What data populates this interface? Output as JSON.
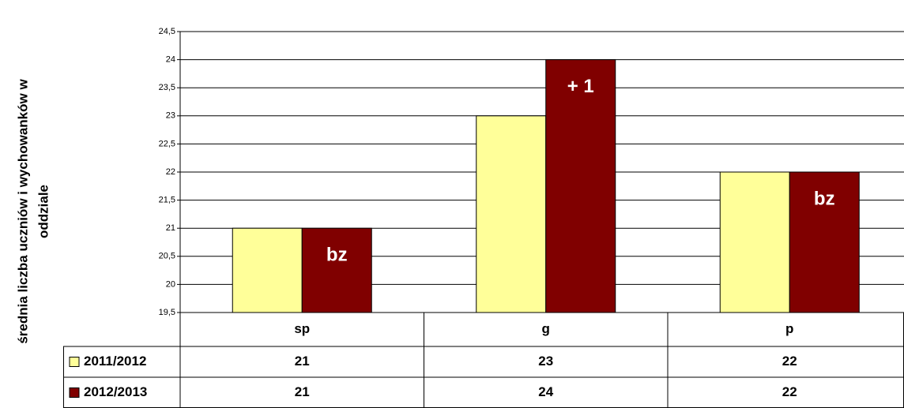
{
  "chart_data": {
    "type": "bar",
    "ylabel": [
      "średnia liczba uczniów i wychowanków w",
      "oddziale"
    ],
    "categories": [
      "sp",
      "g",
      "p"
    ],
    "series": [
      {
        "name": "2011/2012",
        "color": "#ffff99",
        "values": [
          21,
          23,
          22
        ]
      },
      {
        "name": "2012/2013",
        "color": "#800000",
        "values": [
          21,
          24,
          22
        ],
        "annotations": [
          "bz",
          "+ 1",
          "bz"
        ]
      }
    ],
    "ylim": [
      19.5,
      24.5
    ],
    "yticks": [
      {
        "value": 19.5,
        "label": "19,5"
      },
      20,
      {
        "value": 20.5,
        "label": "20,5"
      },
      21,
      {
        "value": 21.5,
        "label": "21,5"
      },
      22,
      {
        "value": 22.5,
        "label": "22,5"
      },
      23,
      {
        "value": 23.5,
        "label": "23,5"
      },
      24,
      {
        "value": 24.5,
        "label": "24,5"
      }
    ],
    "grid": true,
    "data_table": true
  }
}
